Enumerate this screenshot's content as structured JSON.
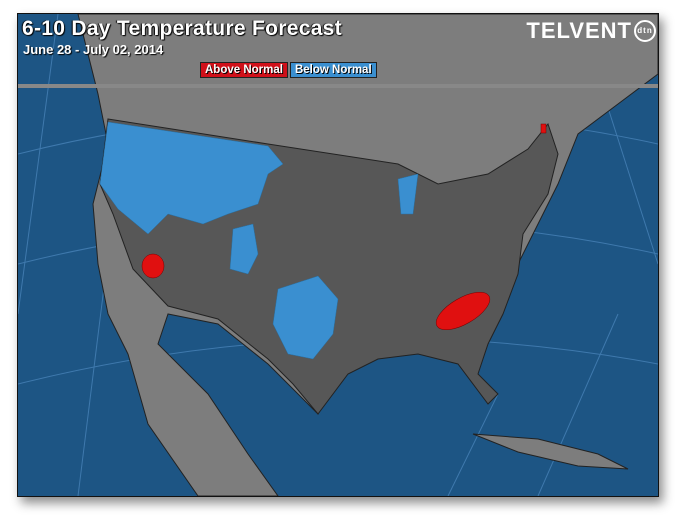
{
  "header": {
    "title": "6-10 Day Temperature Forecast",
    "dates": "June 28 - July 02, 2014",
    "logo": "TELVENT",
    "logo_badge": "dtn"
  },
  "legend": [
    {
      "label": "Above Normal",
      "color": "#d0101a"
    },
    {
      "label": "Below Normal",
      "color": "#3a8fd0"
    }
  ],
  "colors": {
    "ocean": "#1d5584",
    "land": "#7d7d7d",
    "us_land": "#575757",
    "below_normal": "#3a8fd0",
    "above_normal": "#e01010"
  }
}
